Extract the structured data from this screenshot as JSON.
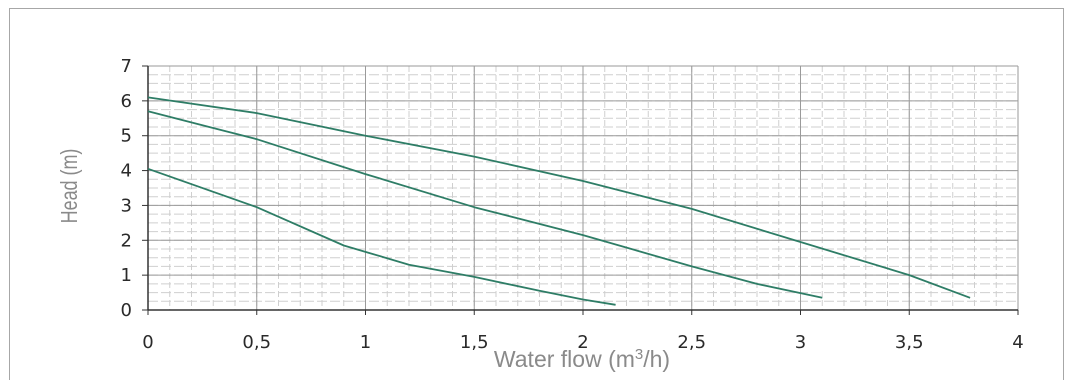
{
  "chart_data": {
    "type": "line",
    "xlabel": "Water flow (m³/h)",
    "ylabel": "Head (m)",
    "xlim": [
      0,
      4
    ],
    "ylim": [
      0,
      7
    ],
    "x_ticks": [
      "0",
      "0,5",
      "1",
      "1,5",
      "2",
      "2,5",
      "3",
      "3,5",
      "4"
    ],
    "y_ticks": [
      "0",
      "1",
      "2",
      "3",
      "4",
      "5",
      "6",
      "7"
    ],
    "grid": true,
    "series": [
      {
        "x": [
          0,
          0.5,
          1,
          1.5,
          2,
          2.5,
          3,
          3.5,
          3.78
        ],
        "y": [
          6.1,
          5.65,
          5.0,
          4.4,
          3.7,
          2.9,
          1.95,
          1.0,
          0.35
        ]
      },
      {
        "x": [
          0,
          0.5,
          1,
          1.5,
          2,
          2.5,
          2.8,
          3.1
        ],
        "y": [
          5.7,
          4.9,
          3.9,
          2.95,
          2.15,
          1.25,
          0.75,
          0.35
        ]
      },
      {
        "x": [
          0,
          0.5,
          0.9,
          1.2,
          1.5,
          1.8,
          2.0,
          2.15
        ],
        "y": [
          4.05,
          2.95,
          1.85,
          1.3,
          0.95,
          0.55,
          0.3,
          0.15
        ]
      }
    ],
    "line_color": "#2e7d66"
  }
}
